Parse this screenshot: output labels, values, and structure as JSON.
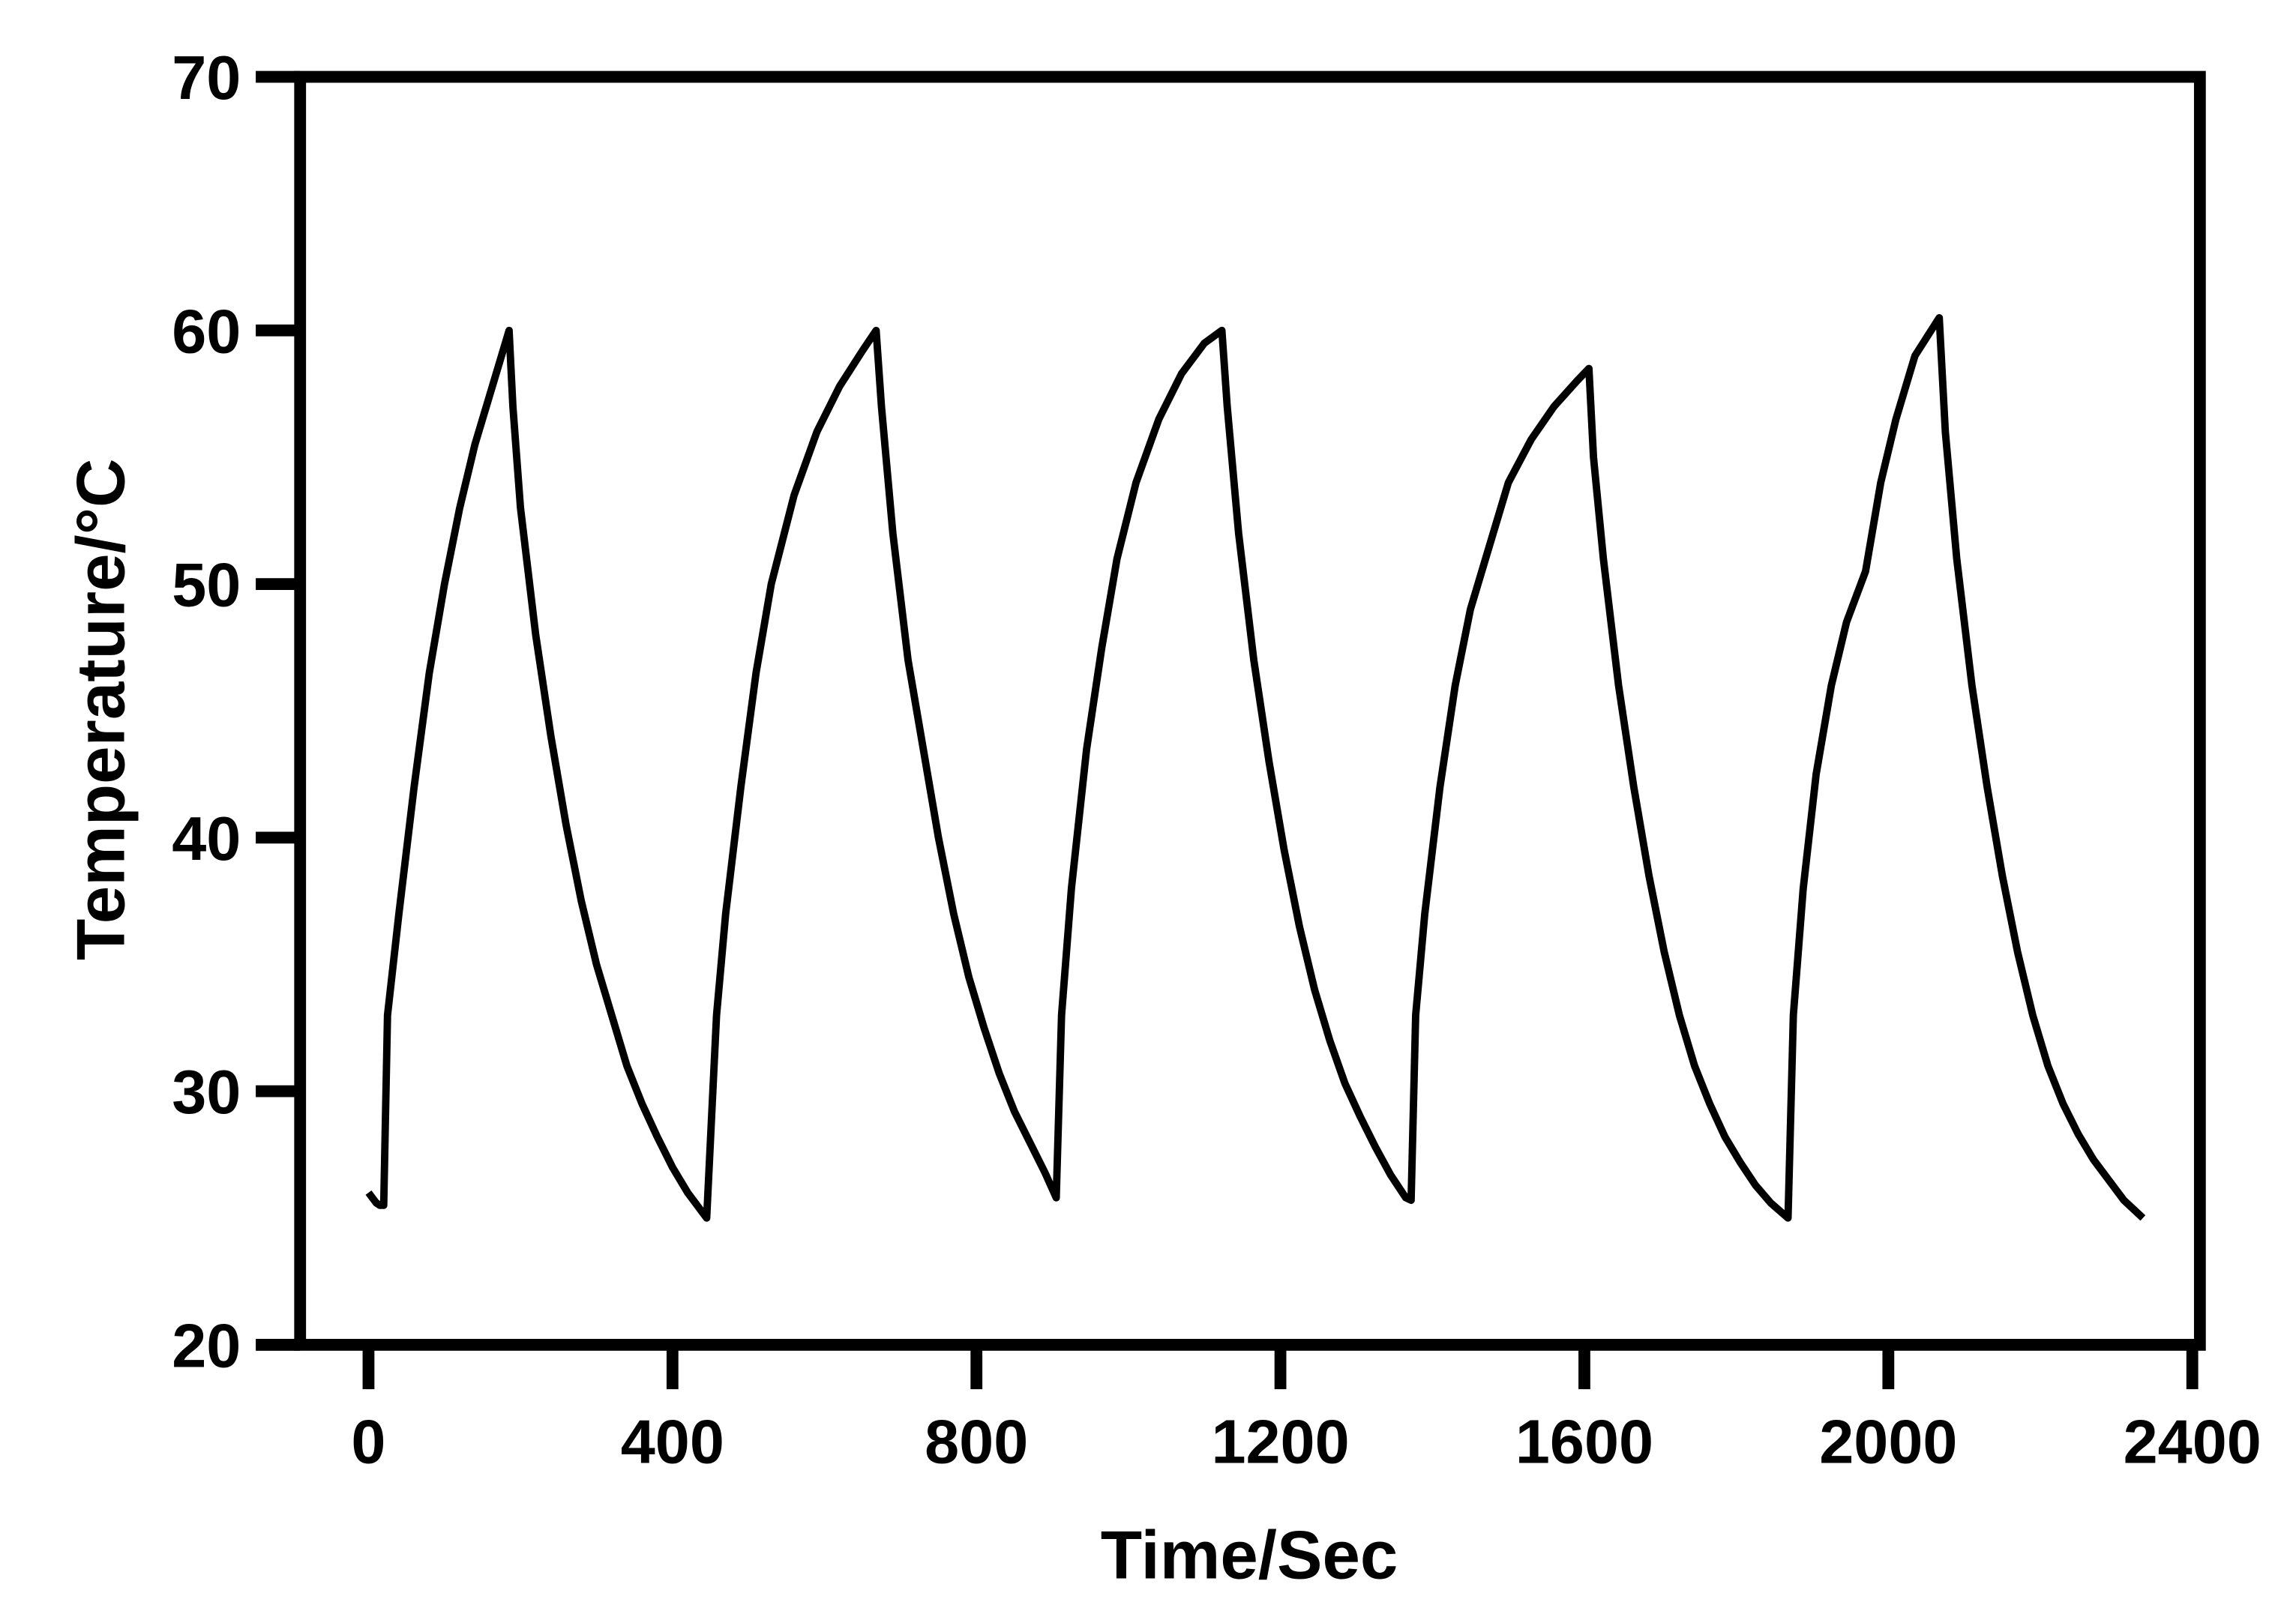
{
  "chart_data": {
    "type": "line",
    "x_label": "Time/Sec",
    "y_label": "Temperature/°C",
    "x": [
      0,
      10,
      15,
      20,
      25,
      40,
      60,
      80,
      100,
      120,
      140,
      160,
      175,
      185,
      190,
      200,
      220,
      240,
      260,
      280,
      300,
      320,
      340,
      360,
      380,
      400,
      420,
      440,
      445,
      458,
      470,
      490,
      510,
      530,
      560,
      590,
      620,
      650,
      668,
      675,
      690,
      710,
      730,
      750,
      770,
      790,
      810,
      830,
      850,
      870,
      890,
      905,
      912,
      925,
      945,
      965,
      985,
      1010,
      1040,
      1070,
      1100,
      1123,
      1130,
      1145,
      1165,
      1185,
      1205,
      1225,
      1245,
      1265,
      1285,
      1305,
      1325,
      1345,
      1365,
      1372,
      1378,
      1390,
      1410,
      1430,
      1450,
      1475,
      1500,
      1530,
      1560,
      1590,
      1606,
      1612,
      1625,
      1645,
      1665,
      1685,
      1705,
      1725,
      1745,
      1765,
      1785,
      1805,
      1825,
      1845,
      1868,
      1875,
      1888,
      1905,
      1925,
      1945,
      1970,
      1990,
      2010,
      2035,
      2067,
      2075,
      2090,
      2110,
      2130,
      2150,
      2170,
      2190,
      2210,
      2230,
      2250,
      2270,
      2290,
      2310,
      2335
    ],
    "series": [
      {
        "color": "#000000",
        "values": [
          26,
          25.6,
          25.5,
          25.5,
          33,
          37,
          42,
          46.5,
          50,
          53,
          55.5,
          57.5,
          59,
          60,
          57,
          53,
          48,
          44,
          40.5,
          37.5,
          35,
          33,
          31,
          29.5,
          28.2,
          27,
          26,
          25.2,
          25,
          33,
          37,
          42,
          46.5,
          50,
          53.5,
          56,
          57.8,
          59.2,
          60,
          57,
          52,
          47,
          43.5,
          40,
          37,
          34.5,
          32.5,
          30.7,
          29.2,
          28,
          26.8,
          25.8,
          33,
          38,
          43.5,
          47.5,
          51,
          54,
          56.5,
          58.3,
          59.5,
          60,
          57,
          52,
          47,
          43,
          39.5,
          36.5,
          34,
          32,
          30.3,
          29,
          27.8,
          26.7,
          25.8,
          25.7,
          33,
          37,
          42,
          46,
          49,
          51.5,
          54,
          55.7,
          57,
          58,
          58.5,
          55,
          51,
          46,
          42,
          38.5,
          35.5,
          33,
          31,
          29.5,
          28.2,
          27.2,
          26.3,
          25.6,
          25,
          33,
          38,
          42.5,
          46,
          48.5,
          50.5,
          54,
          56.5,
          59,
          60.5,
          56,
          51,
          46,
          42,
          38.5,
          35.5,
          33,
          31,
          29.5,
          28.3,
          27.3,
          26.5,
          25.7,
          25
        ]
      }
    ],
    "xlim": [
      -90,
      2410
    ],
    "ylim": [
      20,
      70
    ],
    "xticks": [
      0,
      400,
      800,
      1200,
      1600,
      2000,
      2400
    ],
    "yticks": [
      20,
      30,
      40,
      50,
      60,
      70
    ]
  }
}
